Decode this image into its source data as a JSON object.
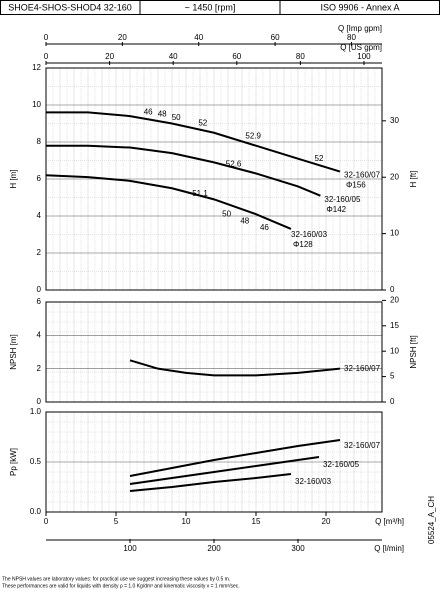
{
  "header": [
    "SHOE4-SHOS-SHOD4 32-160",
    "~ 1450 [rpm]",
    "ISO 9906 - Annex A"
  ],
  "chart_data": [
    {
      "type": "line",
      "ylabel": "H [m]",
      "y2label": "H [ft]",
      "xlim": [
        0,
        24
      ],
      "ylim": [
        0,
        12
      ],
      "yticks": [
        0,
        2,
        4,
        6,
        8,
        10,
        12
      ],
      "y2lim": [
        0,
        39.37
      ],
      "y2ticks": [
        0,
        10,
        20,
        30
      ],
      "grid": true,
      "top_axes": [
        {
          "label": "Q [Imp gpm]",
          "xlim": [
            0,
            88
          ],
          "xticks": [
            0,
            20,
            40,
            60,
            80
          ]
        },
        {
          "label": "Q [US gpm]",
          "xlim": [
            0,
            105.67
          ],
          "xticks": [
            0,
            20,
            40,
            60,
            80,
            100
          ]
        }
      ],
      "series": [
        {
          "name": "32-160/07",
          "diameter": "Φ156",
          "color": "#000000",
          "x": [
            0,
            3,
            6,
            9,
            12,
            15,
            18,
            21
          ],
          "values": [
            9.6,
            9.6,
            9.4,
            9.0,
            8.5,
            7.8,
            7.1,
            6.4
          ]
        },
        {
          "name": "32-160/05",
          "diameter": "Φ142",
          "color": "#000000",
          "x": [
            0,
            3,
            6,
            9,
            12,
            15,
            18,
            19.6
          ],
          "values": [
            7.8,
            7.8,
            7.7,
            7.4,
            6.9,
            6.3,
            5.6,
            5.1
          ]
        },
        {
          "name": "32-160/03",
          "diameter": "Φ128",
          "color": "#000000",
          "x": [
            0,
            3,
            6,
            9,
            12,
            15,
            17.5
          ],
          "values": [
            6.2,
            6.1,
            5.9,
            5.5,
            4.9,
            4.1,
            3.3
          ]
        }
      ],
      "annotations": [
        {
          "text": "46",
          "x": 7.3,
          "y": 9.6
        },
        {
          "text": "48",
          "x": 8.3,
          "y": 9.5
        },
        {
          "text": "50",
          "x": 9.3,
          "y": 9.3
        },
        {
          "text": "52",
          "x": 11.2,
          "y": 9.0
        },
        {
          "text": "52.9",
          "x": 14.8,
          "y": 8.3
        },
        {
          "text": "52",
          "x": 19.5,
          "y": 7.1
        },
        {
          "text": "52.6",
          "x": 13.4,
          "y": 6.8
        },
        {
          "text": "51.1",
          "x": 11.0,
          "y": 5.2
        },
        {
          "text": "50",
          "x": 12.9,
          "y": 4.1
        },
        {
          "text": "48",
          "x": 14.2,
          "y": 3.7
        },
        {
          "text": "46",
          "x": 15.6,
          "y": 3.35
        }
      ]
    },
    {
      "type": "line",
      "ylabel": "NPSH [m]",
      "y2label": "NPSH [ft]",
      "xlim": [
        0,
        24
      ],
      "ylim": [
        0,
        6
      ],
      "yticks": [
        0,
        2,
        4,
        6
      ],
      "y2lim": [
        0,
        19.685
      ],
      "y2ticks": [
        0,
        5,
        10,
        15,
        20
      ],
      "grid": true,
      "series": [
        {
          "name": "32-160/07",
          "color": "#000000",
          "x": [
            6,
            8,
            10,
            12,
            15,
            18,
            21
          ],
          "values": [
            2.5,
            2.0,
            1.75,
            1.6,
            1.6,
            1.75,
            2.0
          ]
        }
      ]
    },
    {
      "type": "line",
      "ylabel": "Pp [kW]",
      "xlim": [
        0,
        24
      ],
      "ylim": [
        0,
        1
      ],
      "yticks": [
        {
          "value": 0,
          "label": "0.0"
        },
        0.5,
        {
          "value": 1,
          "label": "1.0"
        }
      ],
      "grid": true,
      "bottom_axes": [
        {
          "label": "Q [m³/h]",
          "xlim": [
            0,
            24
          ],
          "xticks": [
            0,
            5,
            10,
            15,
            20
          ]
        },
        {
          "label": "Q [l/min]",
          "xlim": [
            0,
            400
          ],
          "xticks": [
            100,
            200,
            300
          ]
        }
      ],
      "series": [
        {
          "name": "32-160/07",
          "color": "#000000",
          "x": [
            6,
            9,
            12,
            15,
            18,
            21
          ],
          "values": [
            0.36,
            0.44,
            0.52,
            0.59,
            0.66,
            0.72
          ]
        },
        {
          "name": "32-160/05",
          "color": "#000000",
          "x": [
            6,
            9,
            12,
            15,
            18,
            19.5
          ],
          "values": [
            0.28,
            0.34,
            0.4,
            0.46,
            0.52,
            0.55
          ]
        },
        {
          "name": "32-160/03",
          "color": "#000000",
          "x": [
            6,
            9,
            12,
            15,
            17.5
          ],
          "values": [
            0.21,
            0.25,
            0.3,
            0.34,
            0.38
          ]
        }
      ]
    }
  ],
  "code": "05524_A_CH",
  "footer_notes": [
    "The NPSH values are laboratory values: for practical use we suggest increasing these values by 0.5 m.",
    "These performances are valid for liquids with density ρ = 1.0 Kg/dm³ and kinematic viscosity ν = 1 mm²/sec."
  ]
}
